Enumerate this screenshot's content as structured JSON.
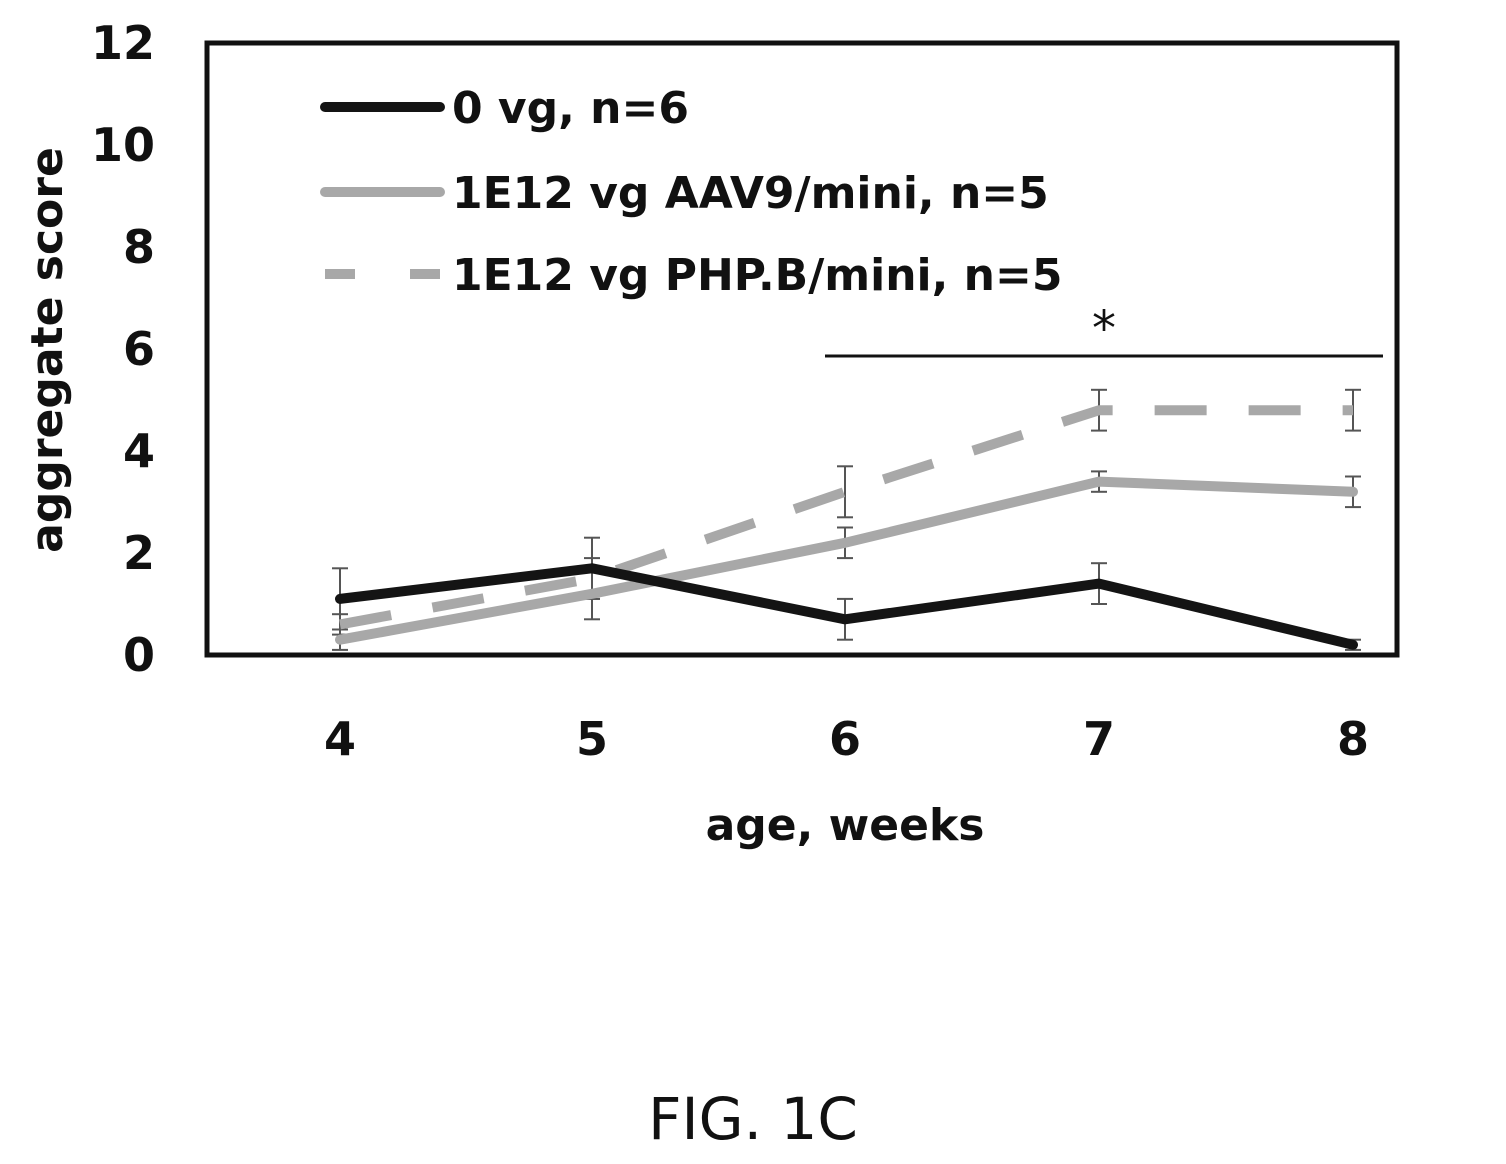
{
  "chart_data": {
    "type": "line",
    "x": [
      4,
      5,
      6,
      7,
      8
    ],
    "xlabel": "age, weeks",
    "ylabel": "aggregate score",
    "xticks": [
      "4",
      "5",
      "6",
      "7",
      "8"
    ],
    "yticks": [
      "0",
      "2",
      "4",
      "6",
      "8",
      "10",
      "12"
    ],
    "ylim": [
      0,
      12
    ],
    "legend_position": "top-left",
    "series": [
      {
        "name": "0 vg, n=6",
        "values": [
          1.1,
          1.7,
          0.7,
          1.4,
          0.2
        ],
        "errors": [
          0.6,
          0.6,
          0.4,
          0.4,
          0.1
        ],
        "color": "#141414",
        "style": "solid"
      },
      {
        "name": "1E12 vg AAV9/mini, n=5",
        "values": [
          0.3,
          1.2,
          2.2,
          3.4,
          3.2
        ],
        "errors": [
          0.2,
          0.5,
          0.3,
          0.2,
          0.3
        ],
        "color": "#a8a8a8",
        "style": "solid"
      },
      {
        "name": "1E12 vg PHP.B/mini, n=5",
        "values": [
          0.6,
          1.5,
          3.2,
          4.8,
          4.8
        ],
        "errors": [
          0.2,
          0.4,
          0.5,
          0.4,
          0.4
        ],
        "color": "#a8a8a8",
        "style": "dashed"
      }
    ],
    "annotation": {
      "text": "*",
      "x_from": 6,
      "x_to": 8
    }
  },
  "caption": "FIG. 1C"
}
